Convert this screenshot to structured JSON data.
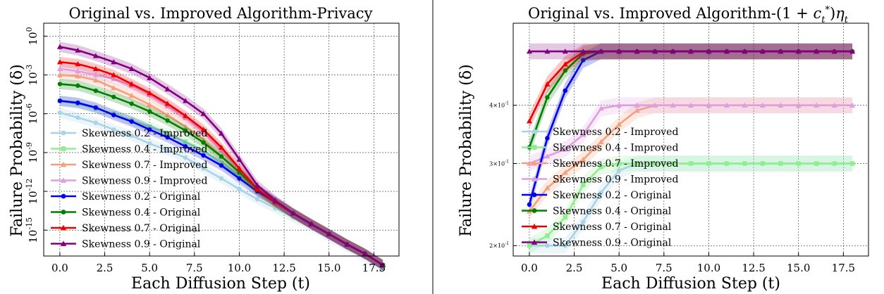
{
  "chart_data": [
    {
      "type": "line",
      "title": "Original vs. Improved Algorithm-Privacy",
      "xlabel": "Each Diffusion Step (t)",
      "ylabel": "Failure Probability (δ)",
      "yscale": "log",
      "xlim": [
        -0.9,
        18.9
      ],
      "ylim": [
        1e-17,
        10
      ],
      "x": [
        0,
        1,
        2,
        3,
        4,
        5,
        6,
        7,
        8,
        9,
        10,
        11,
        12,
        13,
        14,
        15,
        16,
        17,
        18
      ],
      "xticks": [
        "0.0",
        "2.5",
        "5.0",
        "7.5",
        "10.0",
        "12.5",
        "15.0",
        "17.5"
      ],
      "yticks": [
        "10^{0}",
        "10^{-3}",
        "10^{-6}",
        "10^{-9}",
        "10^{-12}",
        "10^{-15}"
      ],
      "grid": true,
      "legend_position": "lower-left",
      "series": [
        {
          "name": "Skewness 0.2 - Improved",
          "color": "#a8d4e6",
          "marker": "circle",
          "values": [
            1.2e-06,
            5e-07,
            2e-07,
            6e-08,
            2e-08,
            5e-09,
            1.5e-09,
            4e-10,
            6e-11,
            1e-11,
            1.5e-12,
            2.5e-13,
            5e-14,
            1e-14,
            2e-15,
            3e-16,
            5e-17,
            8e-18,
            1e-18
          ]
        },
        {
          "name": "Skewness 0.4 - Improved",
          "color": "#90ee90",
          "marker": "square",
          "values": [
            1e-05,
            6e-06,
            2.5e-06,
            1e-06,
            3e-07,
            1e-07,
            3e-08,
            7e-09,
            1.5e-09,
            1.5e-10,
            1.5e-11,
            1e-12,
            1e-13,
            1.5e-14,
            3e-15,
            5e-16,
            8e-17,
            1.5e-17,
            2e-18
          ]
        },
        {
          "name": "Skewness 0.7 - Improved",
          "color": "#f6a07a",
          "marker": "triangle",
          "values": [
            0.001,
            0.0008,
            0.0004,
            0.0001,
            2.5e-05,
            5e-06,
            8e-07,
            1e-07,
            1e-08,
            5e-10,
            3e-11,
            1e-12,
            1.5e-13,
            2e-14,
            3e-15,
            5e-16,
            8e-17,
            1.5e-17,
            2e-18
          ]
        },
        {
          "name": "Skewness 0.9 - Improved",
          "color": "#dda0dd",
          "marker": "triangle",
          "values": [
            0.003,
            0.002,
            0.001,
            0.0005,
            0.00015,
            3e-05,
            4e-06,
            5e-07,
            4e-08,
            1.5e-09,
            5e-11,
            1.5e-12,
            1.5e-13,
            2e-14,
            3e-15,
            5e-16,
            8e-17,
            1.5e-17,
            2e-18
          ]
        },
        {
          "name": "Skewness 0.2 - Original",
          "color": "#0000ee",
          "marker": "circle",
          "values": [
            1e-05,
            7e-06,
            3e-06,
            8e-07,
            2.5e-07,
            6e-08,
            1.5e-08,
            3e-09,
            6e-10,
            1e-10,
            1e-11,
            1e-12,
            1.5e-13,
            2e-14,
            3e-15,
            5e-16,
            8e-17,
            1.5e-17,
            2e-18
          ]
        },
        {
          "name": "Skewness 0.4 - Original",
          "color": "#008000",
          "marker": "circle",
          "values": [
            0.0002,
            0.00015,
            6e-05,
            2e-05,
            6e-06,
            1.5e-06,
            3e-07,
            5e-08,
            6e-09,
            5e-10,
            3e-11,
            1.5e-12,
            1.5e-13,
            2e-14,
            3e-15,
            5e-16,
            8e-17,
            1.5e-17,
            2e-18
          ]
        },
        {
          "name": "Skewness 0.7 - Original",
          "color": "#ee0000",
          "marker": "triangle",
          "values": [
            0.01,
            0.007,
            0.003,
            0.001,
            0.0002,
            4e-05,
            6e-06,
            7e-07,
            6e-08,
            2.5e-09,
            6e-11,
            1.5e-12,
            1.5e-13,
            2e-14,
            3e-15,
            5e-16,
            8e-17,
            1.5e-17,
            2e-18
          ]
        },
        {
          "name": "Skewness 0.9 - Original",
          "color": "#800080",
          "marker": "triangle",
          "values": [
            0.15,
            0.08,
            0.03,
            0.01,
            0.003,
            0.0006,
            8e-05,
            1e-05,
            1e-06,
            3e-08,
            3e-10,
            3e-12,
            2e-13,
            2e-14,
            3e-15,
            5e-16,
            8e-17,
            1.5e-17,
            2e-18
          ]
        }
      ]
    },
    {
      "type": "line",
      "title": "Original vs. Improved Algorithm-(1+c_t^*)η_t",
      "xlabel": "Each Diffusion Step (t)",
      "ylabel": "Failure Probability (δ)",
      "yscale": "log",
      "xlim": [
        -0.9,
        18.9
      ],
      "ylim": [
        0.19,
        0.6
      ],
      "x": [
        0,
        1,
        2,
        3,
        4,
        5,
        6,
        7,
        8,
        9,
        10,
        11,
        12,
        13,
        14,
        15,
        16,
        17,
        18
      ],
      "xticks": [
        "0.0",
        "2.5",
        "5.0",
        "7.5",
        "10.0",
        "12.5",
        "15.0",
        "17.5"
      ],
      "yticks": [
        "2×10^{-1}",
        "3×10^{-1}",
        "4×10^{-1}"
      ],
      "grid": true,
      "legend_position": "lower-left",
      "series": [
        {
          "name": "Skewness 0.2 - Improved",
          "color": "#a8d4e6",
          "marker": "circle",
          "values": [
            0.2,
            0.2,
            0.2,
            0.225,
            0.26,
            0.29,
            0.3,
            0.3,
            0.3,
            0.3,
            0.3,
            0.3,
            0.3,
            0.3,
            0.3,
            0.3,
            0.3,
            0.3,
            0.3
          ]
        },
        {
          "name": "Skewness 0.4 - Improved",
          "color": "#90ee90",
          "marker": "square",
          "values": [
            0.2,
            0.21,
            0.23,
            0.27,
            0.295,
            0.3,
            0.3,
            0.3,
            0.3,
            0.3,
            0.3,
            0.3,
            0.3,
            0.3,
            0.3,
            0.3,
            0.3,
            0.3,
            0.3
          ]
        },
        {
          "name": "Skewness 0.7 - Improved",
          "color": "#f6a07a",
          "marker": "triangle",
          "values": [
            0.237,
            0.266,
            0.287,
            0.306,
            0.334,
            0.364,
            0.39,
            0.4,
            0.4,
            0.4,
            0.4,
            0.4,
            0.4,
            0.4,
            0.4,
            0.4,
            0.4,
            0.4,
            0.4
          ]
        },
        {
          "name": "Skewness 0.9 - Improved",
          "color": "#dda0dd",
          "marker": "triangle",
          "values": [
            0.3,
            0.311,
            0.322,
            0.346,
            0.394,
            0.4,
            0.4,
            0.4,
            0.4,
            0.4,
            0.4,
            0.4,
            0.4,
            0.4,
            0.4,
            0.4,
            0.4,
            0.4,
            0.4
          ]
        },
        {
          "name": "Skewness 0.2 - Original",
          "color": "#0000ee",
          "marker": "circle",
          "values": [
            0.245,
            0.34,
            0.43,
            0.5,
            0.522,
            0.522,
            0.522,
            0.522,
            0.522,
            0.522,
            0.522,
            0.522,
            0.522,
            0.522,
            0.522,
            0.522,
            0.522,
            0.522,
            0.522
          ]
        },
        {
          "name": "Skewness 0.4 - Original",
          "color": "#008000",
          "marker": "circle",
          "values": [
            0.325,
            0.416,
            0.475,
            0.516,
            0.522,
            0.522,
            0.522,
            0.522,
            0.522,
            0.522,
            0.522,
            0.522,
            0.522,
            0.522,
            0.522,
            0.522,
            0.522,
            0.522,
            0.522
          ]
        },
        {
          "name": "Skewness 0.7 - Original",
          "color": "#ee0000",
          "marker": "triangle",
          "values": [
            0.37,
            0.444,
            0.49,
            0.52,
            0.522,
            0.522,
            0.522,
            0.522,
            0.522,
            0.522,
            0.522,
            0.522,
            0.522,
            0.522,
            0.522,
            0.522,
            0.522,
            0.522,
            0.522
          ]
        },
        {
          "name": "Skewness 0.9 - Original",
          "color": "#800080",
          "marker": "triangle",
          "values": [
            0.522,
            0.522,
            0.522,
            0.522,
            0.522,
            0.522,
            0.522,
            0.522,
            0.522,
            0.522,
            0.522,
            0.522,
            0.522,
            0.522,
            0.522,
            0.522,
            0.522,
            0.522,
            0.522
          ]
        }
      ]
    }
  ]
}
